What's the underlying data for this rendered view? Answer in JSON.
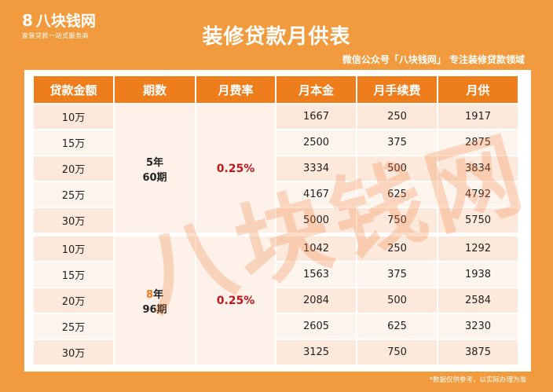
{
  "logo": {
    "mark": "8",
    "name": "八块钱网",
    "tagline": "家装贷款一站式服务商"
  },
  "title": "装修贷款月供表",
  "subtitle": "微信公众号「八块钱网」 专注装修贷款领域",
  "note": "*数据仅供参考，以实际办理为准",
  "watermark": "八块钱网",
  "table": {
    "headers": [
      "贷款金额",
      "期数",
      "月费率",
      "月本金",
      "月手续费",
      "月供"
    ],
    "groups": [
      {
        "term_years": "5年",
        "term_periods": "60期",
        "rate": "0.25%",
        "rows": [
          [
            "10万",
            "1667",
            "250",
            "1917"
          ],
          [
            "15万",
            "2500",
            "375",
            "2875"
          ],
          [
            "20万",
            "3334",
            "500",
            "3834"
          ],
          [
            "25万",
            "4167",
            "625",
            "4792"
          ],
          [
            "30万",
            "5000",
            "750",
            "5750"
          ]
        ]
      },
      {
        "term_years_num": "8",
        "term_years_unit": "年",
        "term_periods": "96期",
        "rate": "0.25%",
        "rows": [
          [
            "10万",
            "1042",
            "250",
            "1292"
          ],
          [
            "15万",
            "1563",
            "375",
            "1938"
          ],
          [
            "20万",
            "2084",
            "500",
            "2584"
          ],
          [
            "25万",
            "2605",
            "625",
            "3230"
          ],
          [
            "30万",
            "3125",
            "750",
            "3875"
          ]
        ]
      }
    ]
  },
  "colors": {
    "background": "#f29b3e",
    "header": "#ee7d1c",
    "row_dark": "#fde8dc",
    "row_light": "#fef4ee",
    "rate_text": "#c0161c"
  }
}
